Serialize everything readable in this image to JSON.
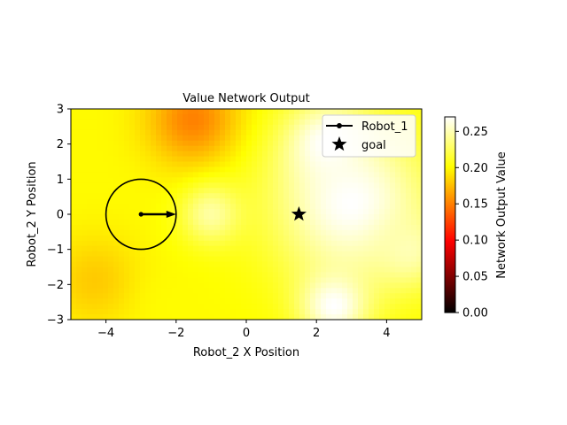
{
  "chart_data": {
    "type": "heatmap",
    "title": "Value Network Output",
    "xlabel": "Robot_2 X Position",
    "ylabel": "Robot_2 Y Position",
    "xlim": [
      -5,
      5
    ],
    "ylim": [
      -3,
      3
    ],
    "x_ticks": [
      -4,
      -2,
      0,
      2,
      4
    ],
    "y_ticks": [
      -3,
      -2,
      -1,
      0,
      1,
      2,
      3
    ],
    "colormap": "hot",
    "colorbar": {
      "label": "Network Output Value",
      "range": [
        0,
        0.27
      ],
      "ticks": [
        0.0,
        0.05,
        0.1,
        0.15,
        0.2,
        0.25
      ],
      "tick_labels": [
        "0.00",
        "0.05",
        "0.10",
        "0.15",
        "0.20",
        "0.25"
      ]
    },
    "field_features": [
      {
        "x": -1.5,
        "y": 2.7,
        "value": 0.15,
        "sigma": 0.9
      },
      {
        "x": -4.3,
        "y": -1.9,
        "value": 0.18,
        "sigma": 0.9
      },
      {
        "x": -2.0,
        "y": -2.6,
        "value": 0.2,
        "sigma": 0.8
      },
      {
        "x": 3.0,
        "y": 0.3,
        "value": 0.27,
        "sigma": 1.6
      },
      {
        "x": 2.3,
        "y": 2.0,
        "value": 0.27,
        "sigma": 0.8
      },
      {
        "x": 2.5,
        "y": -2.6,
        "value": 0.27,
        "sigma": 0.7
      },
      {
        "x": -1.0,
        "y": 0.0,
        "value": 0.245,
        "sigma": 0.6
      },
      {
        "x": 4.6,
        "y": -1.0,
        "value": 0.25,
        "sigma": 0.7
      }
    ],
    "field_base_value": 0.2,
    "robot_1": {
      "name": "Robot_1",
      "x": -3,
      "y": 0,
      "radius": 1,
      "heading": [
        1,
        0
      ],
      "arrow_length": 1
    },
    "goal": {
      "name": "goal",
      "x": 1.5,
      "y": 0
    },
    "legend": {
      "placement": "top-right",
      "entries": [
        "Robot_1",
        "goal"
      ]
    }
  }
}
